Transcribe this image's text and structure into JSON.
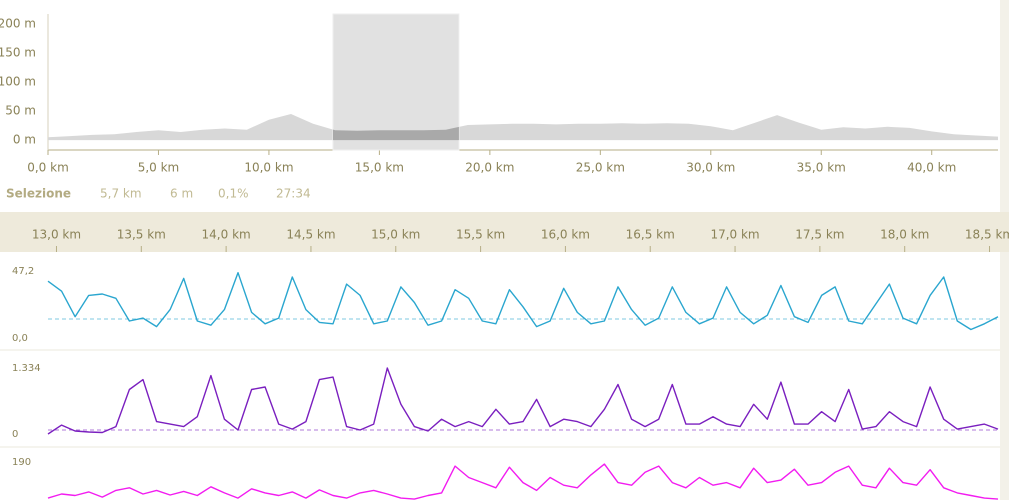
{
  "chart_data": [
    {
      "type": "area",
      "color": "#d8d8d8",
      "selection_color": "#a9a9a9",
      "x": [
        0,
        1,
        2,
        3,
        4,
        5,
        6,
        7,
        8,
        9,
        10,
        11,
        12,
        13,
        14,
        15,
        16,
        17,
        18,
        19,
        20,
        21,
        22,
        23,
        24,
        25,
        26,
        27,
        28,
        29,
        30,
        31,
        32,
        33,
        34,
        35,
        36,
        37,
        38,
        39,
        40,
        41,
        42,
        43
      ],
      "values": [
        5,
        7,
        9,
        10,
        14,
        17,
        14,
        18,
        20,
        18,
        35,
        45,
        28,
        17,
        16,
        17,
        17,
        17,
        18,
        26,
        27,
        28,
        28,
        27,
        28,
        28,
        29,
        28,
        29,
        28,
        24,
        17,
        30,
        43,
        30,
        18,
        22,
        20,
        23,
        21,
        15,
        10,
        8,
        6
      ],
      "xlim": [
        0,
        43
      ],
      "ylim": [
        -17,
        217
      ],
      "xticks": [
        {
          "value": 0,
          "label": "0,0 km"
        },
        {
          "value": 5,
          "label": "5,0 km"
        },
        {
          "value": 10,
          "label": "10,0 km"
        },
        {
          "value": 15,
          "label": "15,0 km"
        },
        {
          "value": 20,
          "label": "20,0 km"
        },
        {
          "value": 25,
          "label": "25,0 km"
        },
        {
          "value": 30,
          "label": "30,0 km"
        },
        {
          "value": 35,
          "label": "35,0 km"
        },
        {
          "value": 40,
          "label": "40,0 km"
        }
      ],
      "yticks": [
        {
          "value": 0,
          "label": "0 m"
        },
        {
          "value": 50,
          "label": "50 m"
        },
        {
          "value": 100,
          "label": "100 m"
        },
        {
          "value": 150,
          "label": "150 m"
        },
        {
          "value": 200,
          "label": "200 m"
        }
      ],
      "selection": {
        "label": "Selezione",
        "range": [
          12.9,
          18.6
        ],
        "stats": [
          "5,7 km",
          "6 m",
          "0,1%",
          "27:34"
        ]
      }
    },
    {
      "type": "line",
      "x": [
        12.95,
        13.03,
        13.11,
        13.19,
        13.27,
        13.35,
        13.43,
        13.51,
        13.59,
        13.67,
        13.75,
        13.83,
        13.91,
        13.99,
        14.07,
        14.15,
        14.23,
        14.31,
        14.39,
        14.47,
        14.55,
        14.63,
        14.71,
        14.79,
        14.87,
        14.95,
        15.03,
        15.11,
        15.19,
        15.27,
        15.35,
        15.43,
        15.51,
        15.59,
        15.67,
        15.75,
        15.83,
        15.91,
        15.99,
        16.07,
        16.15,
        16.23,
        16.31,
        16.39,
        16.47,
        16.55,
        16.63,
        16.71,
        16.79,
        16.87,
        16.95,
        17.03,
        17.11,
        17.19,
        17.27,
        17.35,
        17.43,
        17.51,
        17.59,
        17.67,
        17.75,
        17.83,
        17.91,
        17.99,
        18.07,
        18.15,
        18.23,
        18.31,
        18.39,
        18.47,
        18.55
      ],
      "series": [
        {
          "color": "#2aa6cf",
          "values": [
            40,
            33,
            15,
            30,
            31,
            28,
            12,
            14,
            8,
            20,
            42,
            12,
            9,
            20,
            46,
            18,
            10,
            14,
            43,
            20,
            11,
            10,
            38,
            30,
            10,
            12,
            36,
            25,
            9,
            12,
            34,
            28,
            12,
            10,
            34,
            22,
            8,
            12,
            35,
            18,
            10,
            12,
            36,
            20,
            9,
            14,
            36,
            18,
            10,
            14,
            36,
            18,
            10,
            16,
            37,
            15,
            11,
            30,
            36,
            12,
            10,
            24,
            38,
            14,
            10,
            30,
            43,
            12,
            6,
            10,
            15
          ]
        }
      ],
      "mean": 13.4,
      "xlim": [
        12.95,
        18.55
      ],
      "ylim": [
        0,
        47.2
      ],
      "xticks": [
        {
          "value": 13,
          "label": "13,0 km"
        },
        {
          "value": 13.5,
          "label": "13,5 km"
        },
        {
          "value": 14,
          "label": "14,0 km"
        },
        {
          "value": 14.5,
          "label": "14,5 km"
        },
        {
          "value": 15,
          "label": "15,0 km"
        },
        {
          "value": 15.5,
          "label": "15,5 km"
        },
        {
          "value": 16,
          "label": "16,0 km"
        },
        {
          "value": 16.5,
          "label": "16,5 km"
        },
        {
          "value": 17,
          "label": "17,0 km"
        },
        {
          "value": 17.5,
          "label": "17,5 km"
        },
        {
          "value": 18,
          "label": "18,0 km"
        },
        {
          "value": 18.5,
          "label": "18,5 km"
        }
      ],
      "yticks": [
        {
          "value": 47.2,
          "label": "47,2"
        },
        {
          "value": 0,
          "label": "0,0"
        }
      ]
    },
    {
      "type": "line",
      "x": [
        12.95,
        13.03,
        13.11,
        13.19,
        13.27,
        13.35,
        13.43,
        13.51,
        13.59,
        13.67,
        13.75,
        13.83,
        13.91,
        13.99,
        14.07,
        14.15,
        14.23,
        14.31,
        14.39,
        14.47,
        14.55,
        14.63,
        14.71,
        14.79,
        14.87,
        14.95,
        15.03,
        15.11,
        15.19,
        15.27,
        15.35,
        15.43,
        15.51,
        15.59,
        15.67,
        15.75,
        15.83,
        15.91,
        15.99,
        16.07,
        16.15,
        16.23,
        16.31,
        16.39,
        16.47,
        16.55,
        16.63,
        16.71,
        16.79,
        16.87,
        16.95,
        17.03,
        17.11,
        17.19,
        17.27,
        17.35,
        17.43,
        17.51,
        17.59,
        17.67,
        17.75,
        17.83,
        17.91,
        17.99,
        18.07,
        18.15,
        18.23,
        18.31,
        18.39,
        18.47,
        18.55
      ],
      "series": [
        {
          "color": "#7a1fbf",
          "values": [
            0,
            180,
            60,
            40,
            30,
            150,
            900,
            1100,
            250,
            200,
            150,
            350,
            1180,
            300,
            80,
            900,
            950,
            200,
            100,
            250,
            1100,
            1150,
            150,
            80,
            200,
            1334,
            600,
            150,
            60,
            300,
            150,
            250,
            150,
            500,
            200,
            250,
            700,
            150,
            300,
            250,
            150,
            500,
            1000,
            300,
            150,
            300,
            1000,
            200,
            200,
            350,
            200,
            150,
            600,
            300,
            1050,
            200,
            200,
            450,
            250,
            900,
            100,
            150,
            450,
            250,
            150,
            950,
            300,
            100,
            150,
            200,
            100
          ]
        }
      ],
      "mean": 81,
      "xlim": [
        12.95,
        18.55
      ],
      "ylim": [
        0,
        1334
      ],
      "yticks": [
        {
          "value": 1334,
          "label": "1.334"
        },
        0
      ]
    },
    {
      "type": "line",
      "x": [
        12.95,
        13.03,
        13.11,
        13.19,
        13.27,
        13.35,
        13.43,
        13.51,
        13.59,
        13.67,
        13.75,
        13.83,
        13.91,
        13.99,
        14.07,
        14.15,
        14.23,
        14.31,
        14.39,
        14.47,
        14.55,
        14.63,
        14.71,
        14.79,
        14.87,
        14.95,
        15.03,
        15.11,
        15.19,
        15.27,
        15.35,
        15.43,
        15.51,
        15.59,
        15.67,
        15.75,
        15.83,
        15.91,
        15.99,
        16.07,
        16.15,
        16.23,
        16.31,
        16.39,
        16.47,
        16.55,
        16.63,
        16.71,
        16.79,
        16.87,
        16.95,
        17.03,
        17.11,
        17.19,
        17.27,
        17.35,
        17.43,
        17.51,
        17.59,
        17.67,
        17.75,
        17.83,
        17.91,
        17.99,
        18.07,
        18.15,
        18.23,
        18.31,
        18.39,
        18.47,
        18.55
      ],
      "series": [
        {
          "color": "#f21cf0",
          "values": [
            120,
            128,
            125,
            132,
            122,
            135,
            140,
            128,
            135,
            126,
            133,
            125,
            142,
            130,
            120,
            138,
            130,
            125,
            132,
            120,
            136,
            125,
            120,
            130,
            135,
            128,
            120,
            118,
            125,
            130,
            182,
            160,
            150,
            140,
            180,
            150,
            135,
            160,
            145,
            140,
            165,
            186,
            150,
            145,
            170,
            182,
            150,
            140,
            160,
            145,
            150,
            140,
            178,
            150,
            155,
            176,
            145,
            150,
            170,
            182,
            145,
            140,
            178,
            150,
            145,
            175,
            140,
            130,
            125,
            120,
            118
          ]
        }
      ],
      "xlim": [
        12.95,
        18.55
      ],
      "ylim": [
        0,
        190
      ],
      "yticks": [
        190
      ]
    }
  ]
}
